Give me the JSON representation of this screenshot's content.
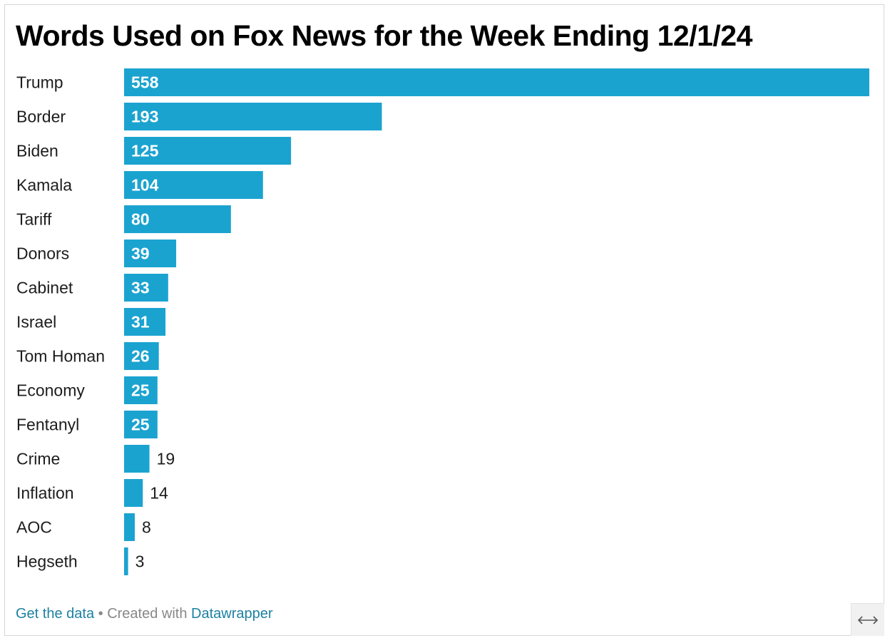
{
  "chart_data": {
    "type": "bar",
    "orientation": "horizontal",
    "title": "Words Used on Fox News for the Week Ending 12/1/24",
    "categories": [
      "Trump",
      "Border",
      "Biden",
      "Kamala",
      "Tariff",
      "Donors",
      "Cabinet",
      "Israel",
      "Tom Homan",
      "Economy",
      "Fentanyl",
      "Crime",
      "Inflation",
      "AOC",
      "Hegseth"
    ],
    "values": [
      558,
      193,
      125,
      104,
      80,
      39,
      33,
      31,
      26,
      25,
      25,
      19,
      14,
      8,
      3
    ],
    "xlim": [
      0,
      558
    ],
    "grid": false,
    "legend": "none",
    "bar_color": "#1ba3d0"
  },
  "footer": {
    "get_data": "Get the data",
    "separator": " • Created with ",
    "datawrapper": "Datawrapper"
  },
  "icons": {
    "expand": "horizontal-arrows-icon"
  }
}
